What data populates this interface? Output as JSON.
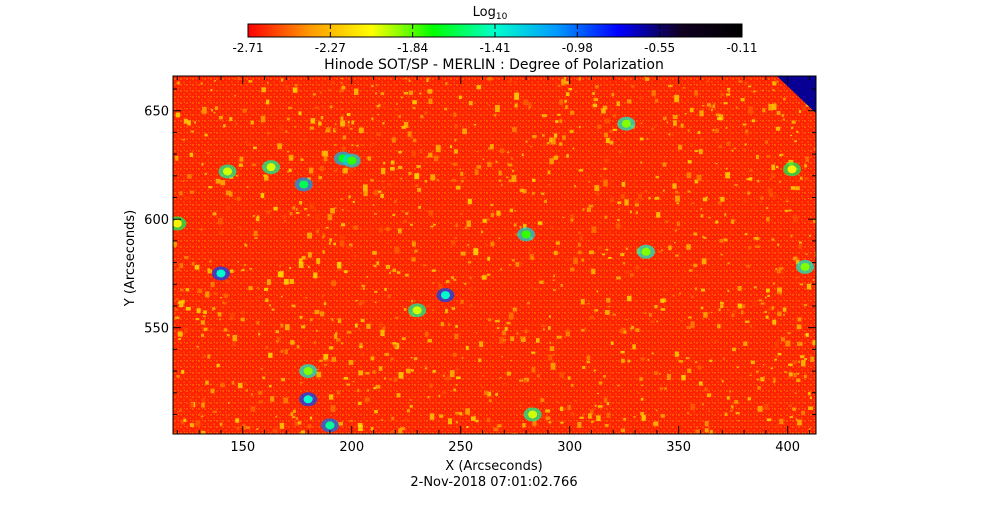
{
  "chart_data": {
    "type": "heatmap",
    "title": "Hinode SOT/SP - MERLIN : Degree of Polarization",
    "xlabel": "X (Arcseconds)",
    "ylabel": "Y (Arcseconds)",
    "xlim": [
      118,
      413
    ],
    "ylim": [
      501,
      666
    ],
    "xticks": [
      150,
      200,
      250,
      300,
      350,
      400
    ],
    "yticks": [
      550,
      600,
      650
    ],
    "colorbar": {
      "label": "Log",
      "label_subscript": "10",
      "ticks": [
        "-2.71",
        "-2.27",
        "-1.84",
        "-1.41",
        "-0.98",
        "-0.55",
        "-0.11"
      ],
      "range": [
        -2.71,
        -0.11
      ],
      "colors": [
        "#ff0000",
        "#ff9900",
        "#ffff00",
        "#00ff00",
        "#00ffcc",
        "#0099ff",
        "#0000ff",
        "#110022",
        "#000000"
      ]
    },
    "background_value": -2.6,
    "features": [
      {
        "x": 243,
        "y": 565,
        "value": -1.4
      },
      {
        "x": 140,
        "y": 575,
        "value": -1.4
      },
      {
        "x": 180,
        "y": 517,
        "value": -1.4
      },
      {
        "x": 190,
        "y": 505,
        "value": -1.5
      },
      {
        "x": 178,
        "y": 616,
        "value": -1.6
      },
      {
        "x": 196,
        "y": 628,
        "value": -1.7
      },
      {
        "x": 200,
        "y": 627,
        "value": -1.8
      },
      {
        "x": 280,
        "y": 593,
        "value": -1.8
      },
      {
        "x": 326,
        "y": 644,
        "value": -1.9
      },
      {
        "x": 335,
        "y": 585,
        "value": -1.9
      },
      {
        "x": 408,
        "y": 578,
        "value": -1.9
      },
      {
        "x": 180,
        "y": 530,
        "value": -1.9
      },
      {
        "x": 163,
        "y": 624,
        "value": -2.0
      },
      {
        "x": 143,
        "y": 622,
        "value": -2.0
      },
      {
        "x": 230,
        "y": 558,
        "value": -2.0
      },
      {
        "x": 283,
        "y": 510,
        "value": -2.0
      },
      {
        "x": 402,
        "y": 623,
        "value": -2.1
      },
      {
        "x": 120,
        "y": 598,
        "value": -2.1
      }
    ],
    "corner_region": {
      "x_from": 395,
      "y_from": 666,
      "value": -0.6
    },
    "timestamp": "2-Nov-2018 07:01:02.766"
  }
}
